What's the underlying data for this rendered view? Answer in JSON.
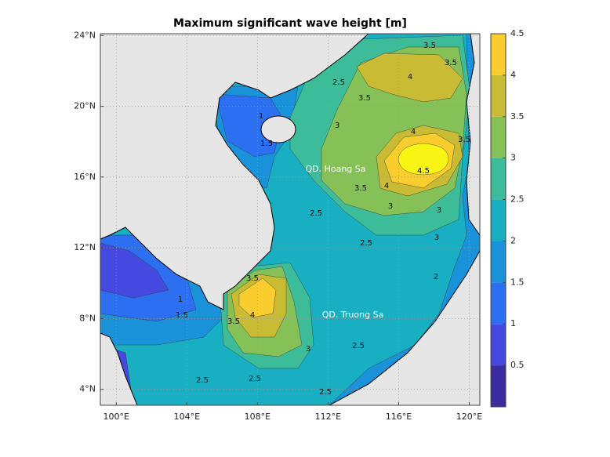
{
  "chart_data": {
    "type": "map",
    "title": "Maximum significant wave height [m]",
    "xlim": [
      99.1,
      120.6
    ],
    "xticks": [
      {
        "value": 100,
        "label": "100°E"
      },
      {
        "value": 104,
        "label": "104°E"
      },
      {
        "value": 108,
        "label": "108°E"
      },
      {
        "value": 112,
        "label": "112°E"
      },
      {
        "value": 116,
        "label": "116°E"
      },
      {
        "value": 120,
        "label": "120°E"
      }
    ],
    "ylim": [
      3.1,
      24.1
    ],
    "yticks": [
      {
        "value": 4,
        "label": "4°N"
      },
      {
        "value": 8,
        "label": "8°N"
      },
      {
        "value": 12,
        "label": "12°N"
      },
      {
        "value": 16,
        "label": "16°N"
      },
      {
        "value": 20,
        "label": "20°N"
      },
      {
        "value": 24,
        "label": "24°N"
      }
    ],
    "grid": true,
    "clim": [
      0,
      4.5
    ],
    "colorbar_ticks": [
      0.5,
      1,
      1.5,
      2,
      2.5,
      3,
      3.5,
      4,
      4.5
    ],
    "levels": [
      0.5,
      1,
      1.5,
      2,
      2.5,
      3,
      3.5,
      4,
      4.5
    ],
    "colors": [
      "#3b2b9e",
      "#4549e0",
      "#2c6ff0",
      "#1a92da",
      "#18afc2",
      "#3cbc98",
      "#86c158",
      "#c9bb33",
      "#f8cd2d",
      "#f8f414"
    ],
    "contour_labels": [
      4,
      3.5,
      3.5,
      3.5,
      2.5,
      3,
      4,
      4.5,
      4,
      3.5,
      3,
      3,
      3,
      3.5,
      2.5,
      2.5,
      1,
      1.5,
      3.5,
      4,
      3.5,
      1,
      1.5,
      3,
      2.5,
      2.5,
      2.5,
      2.5,
      2
    ],
    "places": [
      "QD. Hoang Sa",
      "QD. Truong Sa"
    ]
  }
}
